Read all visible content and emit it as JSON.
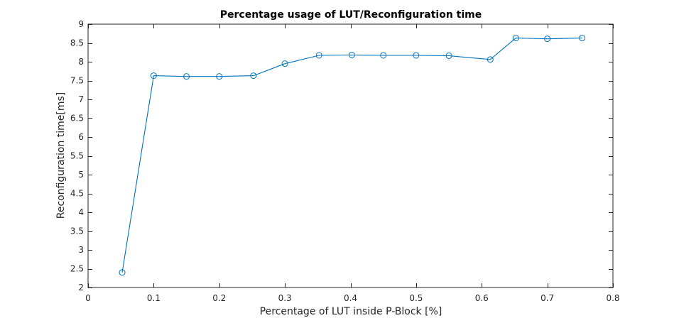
{
  "chart_data": {
    "type": "line",
    "title": "Percentage usage of LUT/Reconfiguration time",
    "xlabel": "Percentage of LUT inside P-Block [%]",
    "ylabel": "Reconfiguration time[ms]",
    "xlim": [
      0,
      0.8
    ],
    "ylim": [
      2,
      9
    ],
    "xticks": [
      0,
      0.1,
      0.2,
      0.3,
      0.4,
      0.5,
      0.6,
      0.7,
      0.8
    ],
    "xtick_labels": [
      "0",
      "0.1",
      "0.2",
      "0.3",
      "0.4",
      "0.5",
      "0.6",
      "0.7",
      "0.8"
    ],
    "yticks": [
      2,
      2.5,
      3,
      3.5,
      4,
      4.5,
      5,
      5.5,
      6,
      6.5,
      7,
      7.5,
      8,
      8.5,
      9
    ],
    "ytick_labels": [
      "2",
      "2.5",
      "3",
      "3.5",
      "4",
      "4.5",
      "5",
      "5.5",
      "6",
      "6.5",
      "7",
      "7.5",
      "8",
      "8.5",
      "9"
    ],
    "grid": false,
    "marker": "circle",
    "line_color": "#0072BD",
    "series": [
      {
        "x": [
          0.052,
          0.1,
          0.15,
          0.2,
          0.252,
          0.3,
          0.352,
          0.402,
          0.45,
          0.5,
          0.55,
          0.613,
          0.652,
          0.7,
          0.753
        ],
        "values": [
          2.4,
          7.63,
          7.61,
          7.61,
          7.63,
          7.95,
          8.17,
          8.18,
          8.17,
          8.17,
          8.16,
          8.06,
          8.63,
          8.61,
          8.63
        ]
      }
    ]
  }
}
